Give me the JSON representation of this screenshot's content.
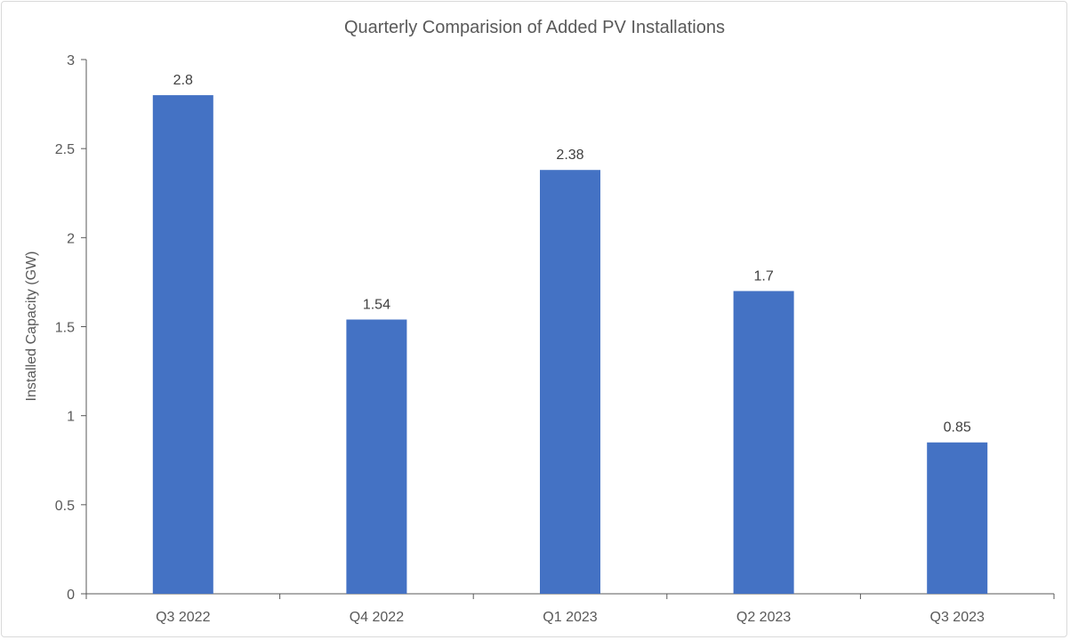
{
  "chart_data": {
    "type": "bar",
    "title": "Quarterly Comparision of Added PV Installations",
    "xlabel": "",
    "ylabel": "Installed Capacity (GW)",
    "categories": [
      "Q3 2022",
      "Q4 2022",
      "Q1 2023",
      "Q2 2023",
      "Q3 2023"
    ],
    "values": [
      2.8,
      1.54,
      2.38,
      1.7,
      0.85
    ],
    "data_labels": [
      "2.8",
      "1.54",
      "2.38",
      "1.7",
      "0.85"
    ],
    "ylim": [
      0,
      3
    ],
    "yticks": [
      "0",
      "0.5",
      "1",
      "1.5",
      "2",
      "2.5",
      "3"
    ],
    "grid": false,
    "legend": "none",
    "bar_color": "#4472C4"
  }
}
